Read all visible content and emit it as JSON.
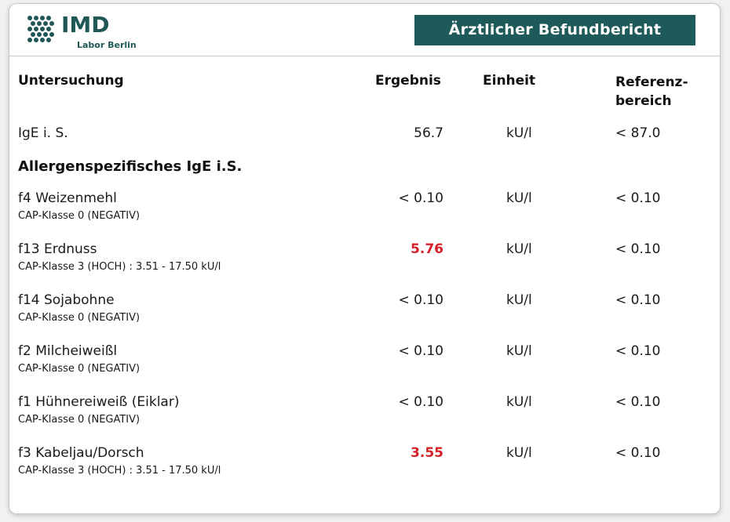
{
  "header": {
    "logo_name": "IMD",
    "logo_subtitle": "Labor Berlin",
    "title": "Ärztlicher Befundbericht",
    "brand_color": "#1e5a5a"
  },
  "columns": {
    "untersuchung": "Untersuchung",
    "ergebnis": "Ergebnis",
    "einheit": "Einheit",
    "referenz_line1": "Referenz-",
    "referenz_line2": "bereich"
  },
  "total_ige": {
    "name": "IgE i. S.",
    "result": "56.7",
    "unit": "kU/l",
    "reference": "< 87.0"
  },
  "section_title": "Allergenspezifisches IgE i.S.",
  "rows": [
    {
      "name": "f4 Weizenmehl",
      "class_text": "CAP-Klasse 0 (NEGATIV)",
      "result": "< 0.10",
      "unit": "kU/l",
      "reference": "< 0.10",
      "high": false
    },
    {
      "name": "f13 Erdnuss",
      "class_text": "CAP-Klasse 3 (HOCH) : 3.51 - 17.50 kU/l",
      "result": "5.76",
      "unit": "kU/l",
      "reference": "< 0.10",
      "high": true
    },
    {
      "name": "f14 Sojabohne",
      "class_text": "CAP-Klasse 0 (NEGATIV)",
      "result": "< 0.10",
      "unit": "kU/l",
      "reference": "< 0.10",
      "high": false
    },
    {
      "name": "f2 Milcheiweißl",
      "class_text": "CAP-Klasse 0 (NEGATIV)",
      "result": "< 0.10",
      "unit": "kU/l",
      "reference": "< 0.10",
      "high": false
    },
    {
      "name": "f1 Hühnereiweiß (Eiklar)",
      "class_text": "CAP-Klasse 0 (NEGATIV)",
      "result": "< 0.10",
      "unit": "kU/l",
      "reference": "< 0.10",
      "high": false
    },
    {
      "name": "f3 Kabeljau/Dorsch",
      "class_text": "CAP-Klasse 3 (HOCH) : 3.51 - 17.50 kU/l",
      "result": "3.55",
      "unit": "kU/l",
      "reference": "< 0.10",
      "high": true
    }
  ],
  "colors": {
    "high_value": "#d62028",
    "text": "#1a1a1a"
  }
}
